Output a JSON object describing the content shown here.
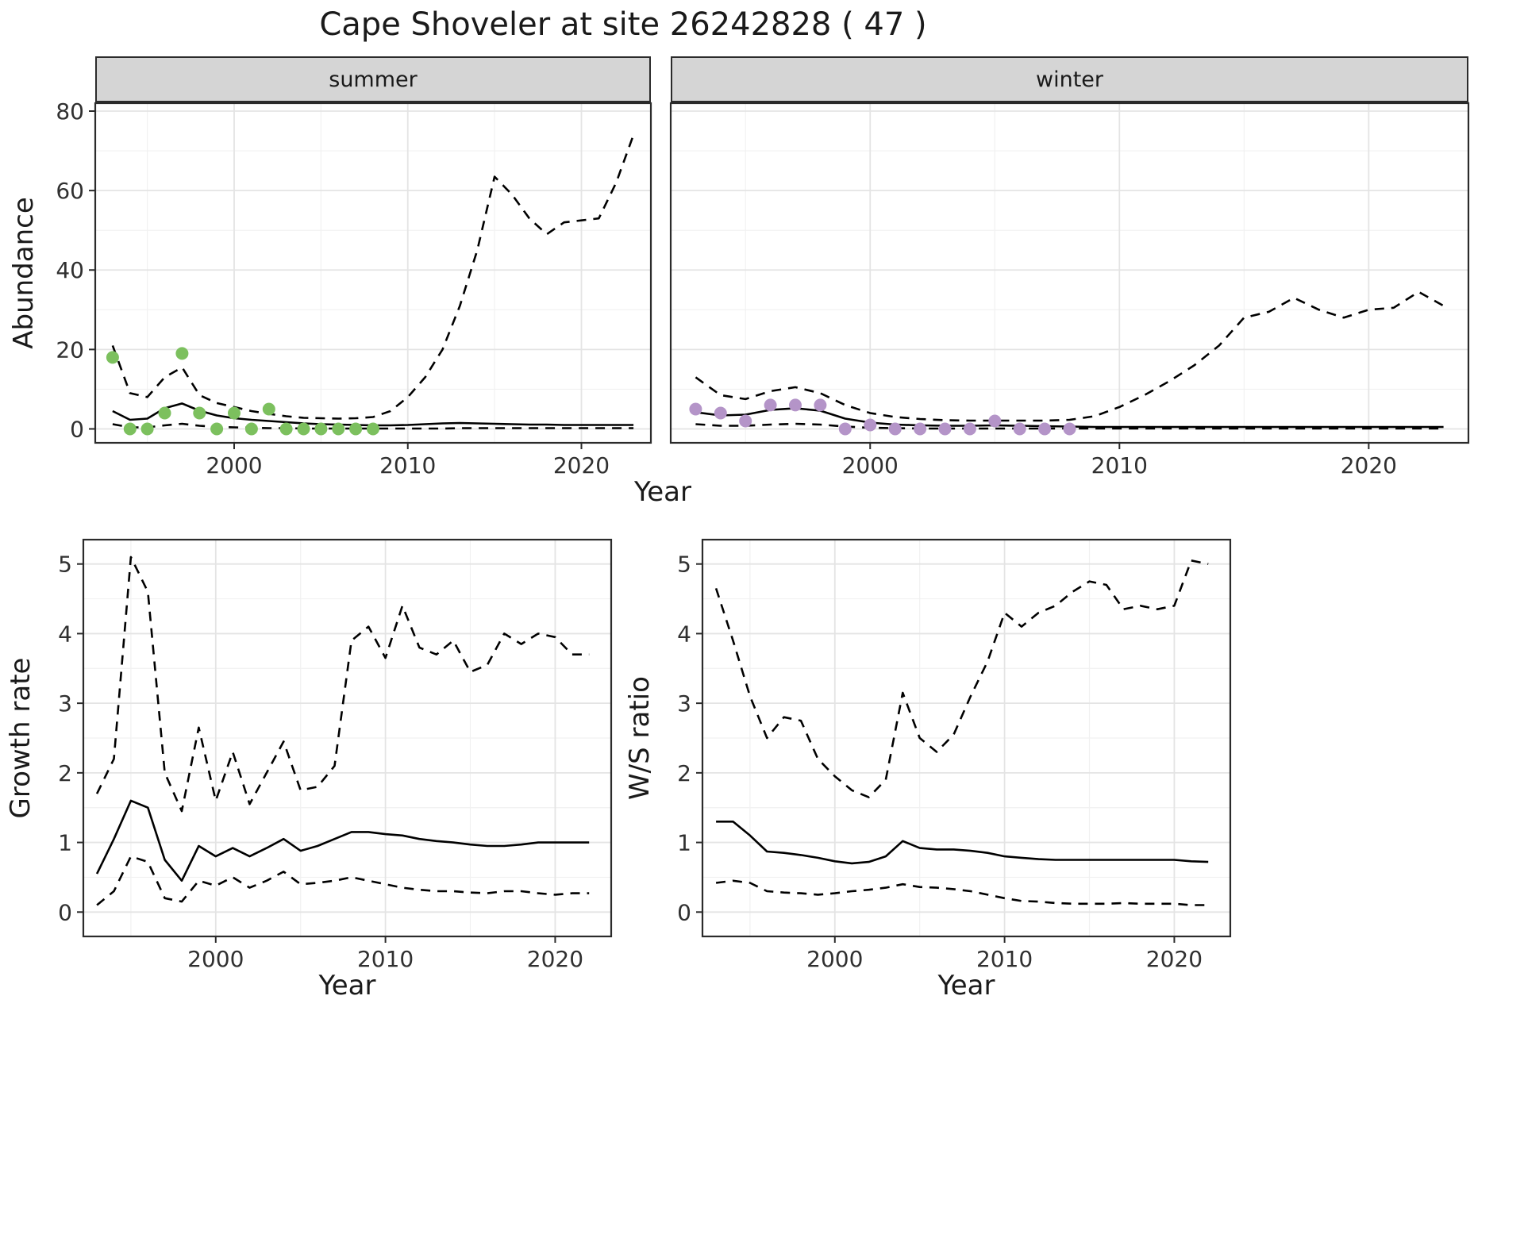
{
  "colors": {
    "summer_points": "#7cc05e",
    "winter_points": "#b494c8",
    "line": "#000000",
    "panel_border": "#2b2b2b",
    "strip_background": "#d5d5d5",
    "grid_major": "#e4e4e4",
    "grid_minor": "#f1f1f1",
    "tick_label": "#303030"
  },
  "chart_data": {
    "type": "line",
    "title": "Cape Shoveler at site 26242828 ( 47 )",
    "legend": "none",
    "grid": "on",
    "panels": {
      "abundance_summer": {
        "facet_label": "summer",
        "ylabel": "Abundance",
        "xlabel": "Year",
        "xlim": [
          1992,
          2024
        ],
        "ylim": [
          -3.5,
          82
        ],
        "xticks": [
          2000,
          2010,
          2020
        ],
        "yticks": [
          0,
          20,
          40,
          60,
          80
        ],
        "years": [
          1993,
          1994,
          1995,
          1996,
          1997,
          1998,
          1999,
          2000,
          2001,
          2002,
          2003,
          2004,
          2005,
          2006,
          2007,
          2008,
          2009,
          2010,
          2011,
          2012,
          2013,
          2014,
          2015,
          2016,
          2017,
          2018,
          2019,
          2020,
          2021,
          2022,
          2023
        ],
        "series": [
          {
            "name": "mean_fit",
            "style": "solid",
            "values": [
              4.5,
              2.3,
              2.6,
              5.2,
              6.4,
              4.6,
              3.4,
              2.7,
              2.3,
              2.0,
              1.7,
              1.4,
              1.2,
              1.1,
              1.0,
              0.9,
              0.9,
              1.0,
              1.2,
              1.4,
              1.5,
              1.4,
              1.3,
              1.2,
              1.1,
              1.1,
              1.0,
              1.0,
              1.0,
              1.0,
              1.0
            ]
          },
          {
            "name": "upper_ci",
            "style": "dashed",
            "values": [
              21,
              9,
              8,
              13,
              15.5,
              8.5,
              6.5,
              5.5,
              4.5,
              3.8,
              3.2,
              2.8,
              2.7,
              2.6,
              2.7,
              3.0,
              4.5,
              8,
              13,
              20,
              31,
              45,
              63.5,
              59,
              53,
              49,
              52,
              52.5,
              53,
              62,
              74
            ]
          },
          {
            "name": "lower_ci",
            "style": "dashed",
            "values": [
              1.2,
              0.4,
              0.4,
              0.9,
              1.3,
              0.8,
              0.5,
              0.4,
              0.3,
              0.2,
              0.2,
              0.1,
              0.1,
              0.1,
              0.1,
              0.1,
              0.1,
              0.1,
              0.1,
              0.1,
              0.2,
              0.2,
              0.2,
              0.2,
              0.2,
              0.2,
              0.2,
              0.2,
              0.2,
              0.2,
              0.2
            ]
          }
        ],
        "points": {
          "name": "observed_counts",
          "color_key": "summer_points",
          "years": [
            1993,
            1994,
            1995,
            1996,
            1997,
            1998,
            1999,
            2000,
            2001,
            2002,
            2003,
            2004,
            2005,
            2006,
            2007,
            2008
          ],
          "values": [
            18,
            0,
            0,
            4,
            19,
            4,
            0,
            4,
            0,
            5,
            0,
            0,
            0,
            0,
            0,
            0
          ]
        }
      },
      "abundance_winter": {
        "facet_label": "winter",
        "ylabel": "Abundance",
        "xlabel": "Year",
        "xlim": [
          1992,
          2024
        ],
        "ylim": [
          -3.5,
          82
        ],
        "xticks": [
          2000,
          2010,
          2020
        ],
        "yticks": [
          0,
          20,
          40,
          60,
          80
        ],
        "years": [
          1993,
          1994,
          1995,
          1996,
          1997,
          1998,
          1999,
          2000,
          2001,
          2002,
          2003,
          2004,
          2005,
          2006,
          2007,
          2008,
          2009,
          2010,
          2011,
          2012,
          2013,
          2014,
          2015,
          2016,
          2017,
          2018,
          2019,
          2020,
          2021,
          2022,
          2023
        ],
        "series": [
          {
            "name": "mean_fit",
            "style": "solid",
            "values": [
              4.2,
              3.4,
              3.6,
              4.8,
              5.2,
              4.6,
              2.6,
              1.6,
              1.1,
              0.9,
              0.8,
              0.8,
              0.9,
              0.8,
              0.7,
              0.6,
              0.5,
              0.5,
              0.5,
              0.5,
              0.5,
              0.5,
              0.5,
              0.5,
              0.5,
              0.5,
              0.5,
              0.5,
              0.5,
              0.5,
              0.5
            ]
          },
          {
            "name": "upper_ci",
            "style": "dashed",
            "values": [
              13,
              8.5,
              7.5,
              9.5,
              10.5,
              9,
              6,
              4,
              3,
              2.5,
              2.2,
              2.1,
              2.1,
              2.1,
              2.1,
              2.3,
              3.2,
              5.5,
              8.5,
              12,
              16,
              21,
              28,
              29.5,
              33,
              30,
              28,
              30,
              30.5,
              34.5,
              31
            ]
          },
          {
            "name": "lower_ci",
            "style": "dashed",
            "values": [
              1.2,
              0.8,
              0.8,
              1.1,
              1.3,
              1.1,
              0.6,
              0.3,
              0.2,
              0.1,
              0.1,
              0.1,
              0.1,
              0.1,
              0.1,
              0.1,
              0.1,
              0.1,
              0.1,
              0.1,
              0.1,
              0.1,
              0.1,
              0.1,
              0.1,
              0.1,
              0.1,
              0.1,
              0.1,
              0.1,
              0.1
            ]
          }
        ],
        "points": {
          "name": "observed_counts",
          "color_key": "winter_points",
          "years": [
            1993,
            1994,
            1995,
            1996,
            1997,
            1998,
            1999,
            2000,
            2001,
            2002,
            2003,
            2004,
            2005,
            2006,
            2007,
            2008
          ],
          "values": [
            5,
            4,
            2,
            6,
            6,
            6,
            0,
            1,
            0,
            0,
            0,
            0,
            2,
            0,
            0,
            0
          ]
        }
      },
      "growth_rate": {
        "ylabel": "Growth rate",
        "xlabel": "Year",
        "xlim": [
          1992.2,
          2023.3
        ],
        "ylim": [
          -0.35,
          5.35
        ],
        "xticks": [
          2000,
          2010,
          2020
        ],
        "yticks": [
          0,
          1,
          2,
          3,
          4,
          5
        ],
        "years": [
          1993,
          1994,
          1995,
          1996,
          1997,
          1998,
          1999,
          2000,
          2001,
          2002,
          2003,
          2004,
          2005,
          2006,
          2007,
          2008,
          2009,
          2010,
          2011,
          2012,
          2013,
          2014,
          2015,
          2016,
          2017,
          2018,
          2019,
          2020,
          2021,
          2022
        ],
        "series": [
          {
            "name": "mean_fit",
            "style": "solid",
            "values": [
              0.55,
              1.05,
              1.6,
              1.5,
              0.75,
              0.45,
              0.95,
              0.8,
              0.92,
              0.8,
              0.92,
              1.05,
              0.88,
              0.95,
              1.05,
              1.15,
              1.15,
              1.12,
              1.1,
              1.05,
              1.02,
              1.0,
              0.97,
              0.95,
              0.95,
              0.97,
              1.0,
              1.0,
              1.0,
              1.0
            ]
          },
          {
            "name": "upper_ci",
            "style": "dashed",
            "values": [
              1.7,
              2.2,
              5.1,
              4.6,
              2.0,
              1.45,
              2.65,
              1.6,
              2.3,
              1.55,
              2.0,
              2.45,
              1.75,
              1.8,
              2.1,
              3.9,
              4.1,
              3.65,
              4.4,
              3.8,
              3.7,
              3.9,
              3.45,
              3.55,
              4.0,
              3.85,
              4.0,
              3.95,
              3.7,
              3.7
            ]
          },
          {
            "name": "lower_ci",
            "style": "dashed",
            "values": [
              0.1,
              0.3,
              0.8,
              0.72,
              0.2,
              0.15,
              0.45,
              0.38,
              0.5,
              0.35,
              0.45,
              0.58,
              0.4,
              0.42,
              0.45,
              0.5,
              0.45,
              0.4,
              0.35,
              0.32,
              0.3,
              0.3,
              0.28,
              0.27,
              0.3,
              0.3,
              0.27,
              0.25,
              0.27,
              0.27
            ]
          }
        ]
      },
      "ws_ratio": {
        "ylabel": "W/S ratio",
        "xlabel": "Year",
        "xlim": [
          1992.2,
          2023.3
        ],
        "ylim": [
          -0.35,
          5.35
        ],
        "xticks": [
          2000,
          2010,
          2020
        ],
        "yticks": [
          0,
          1,
          2,
          3,
          4,
          5
        ],
        "years": [
          1993,
          1994,
          1995,
          1996,
          1997,
          1998,
          1999,
          2000,
          2001,
          2002,
          2003,
          2004,
          2005,
          2006,
          2007,
          2008,
          2009,
          2010,
          2011,
          2012,
          2013,
          2014,
          2015,
          2016,
          2017,
          2018,
          2019,
          2020,
          2021,
          2022
        ],
        "series": [
          {
            "name": "mean_fit",
            "style": "solid",
            "values": [
              1.3,
              1.3,
              1.1,
              0.87,
              0.85,
              0.82,
              0.78,
              0.73,
              0.7,
              0.72,
              0.8,
              1.02,
              0.92,
              0.9,
              0.9,
              0.88,
              0.85,
              0.8,
              0.78,
              0.76,
              0.75,
              0.75,
              0.75,
              0.75,
              0.75,
              0.75,
              0.75,
              0.75,
              0.73,
              0.72
            ]
          },
          {
            "name": "upper_ci",
            "style": "dashed",
            "values": [
              4.65,
              3.9,
              3.1,
              2.5,
              2.8,
              2.75,
              2.2,
              1.95,
              1.75,
              1.65,
              1.9,
              3.15,
              2.5,
              2.3,
              2.55,
              3.1,
              3.6,
              4.3,
              4.1,
              4.3,
              4.4,
              4.6,
              4.75,
              4.7,
              4.35,
              4.4,
              4.35,
              4.4,
              5.05,
              5.0
            ]
          },
          {
            "name": "lower_ci",
            "style": "dashed",
            "values": [
              0.42,
              0.45,
              0.42,
              0.3,
              0.28,
              0.27,
              0.25,
              0.27,
              0.3,
              0.32,
              0.35,
              0.4,
              0.36,
              0.35,
              0.33,
              0.3,
              0.25,
              0.2,
              0.16,
              0.15,
              0.13,
              0.12,
              0.12,
              0.12,
              0.13,
              0.12,
              0.12,
              0.12,
              0.1,
              0.1
            ]
          }
        ]
      }
    }
  }
}
